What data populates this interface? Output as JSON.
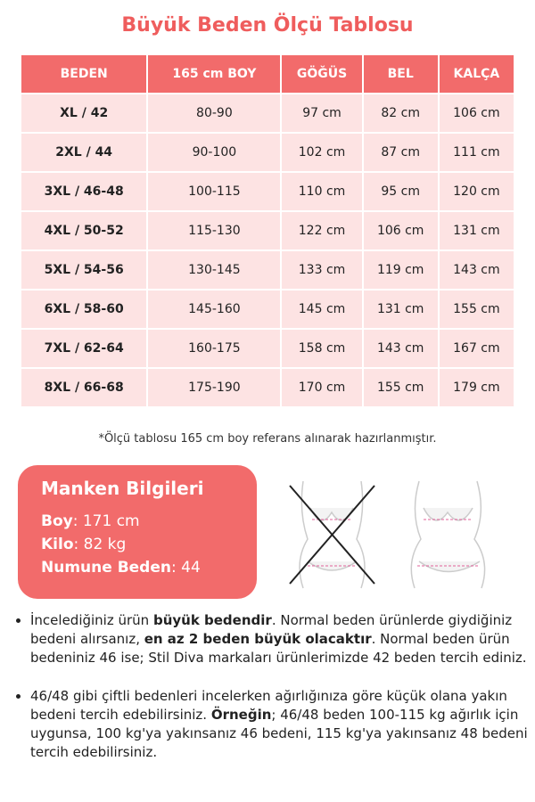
{
  "header": {
    "title": "Büyük Beden Ölçü Tablosu"
  },
  "table": {
    "columns": [
      "BEDEN",
      "165 cm BOY",
      "GÖĞÜS",
      "BEL",
      "KALÇA"
    ],
    "rows": [
      [
        "XL / 42",
        "80-90",
        "97 cm",
        "82 cm",
        "106 cm"
      ],
      [
        "2XL / 44",
        "90-100",
        "102 cm",
        "87 cm",
        "111 cm"
      ],
      [
        "3XL / 46-48",
        "100-115",
        "110 cm",
        "95 cm",
        "120 cm"
      ],
      [
        "4XL / 50-52",
        "115-130",
        "122 cm",
        "106 cm",
        "131 cm"
      ],
      [
        "5XL / 54-56",
        "130-145",
        "133 cm",
        "119 cm",
        "143 cm"
      ],
      [
        "6XL / 58-60",
        "145-160",
        "145 cm",
        "131 cm",
        "155 cm"
      ],
      [
        "7XL / 62-64",
        "160-175",
        "158 cm",
        "143 cm",
        "167 cm"
      ],
      [
        "8XL / 66-68",
        "175-190",
        "170 cm",
        "155 cm",
        "179 cm"
      ]
    ]
  },
  "footnote": "*Ölçü tablosu 165 cm boy referans alınarak hazırlanmıştır.",
  "model": {
    "title": "Manken Bilgileri",
    "items": [
      {
        "label": "Boy",
        "value": ": 171 cm"
      },
      {
        "label": "Kilo",
        "value": ": 82 kg"
      },
      {
        "label": "Numune Beden",
        "value": ": 44"
      }
    ]
  },
  "notes": [
    [
      {
        "text": "İncelediğiniz ürün "
      },
      {
        "text": "büyük bedendir",
        "bold": true
      },
      {
        "text": ". Normal beden ürünlerde giydiğiniz bedeni alırsanız, "
      },
      {
        "text": "en az 2 beden büyük olacaktır",
        "bold": true
      },
      {
        "text": ". Normal beden ürün bedeniniz 46 ise; Stil Diva markaları ürünlerimizde 42 beden tercih ediniz."
      }
    ],
    [
      {
        "text": "46/48 gibi çiftli bedenleri incelerken ağırlığınıza göre küçük olana yakın bedeni tercih edebilirsiniz. "
      },
      {
        "text": "Örneğin",
        "bold": true
      },
      {
        "text": "; 46/48 beden 100-115 kg ağırlık için uygunsa, 100 kg'ya yakınsanız 46 bedeni, 115 kg'ya yakınsanız 48 bedeni tercih edebilirsiniz."
      }
    ]
  ]
}
